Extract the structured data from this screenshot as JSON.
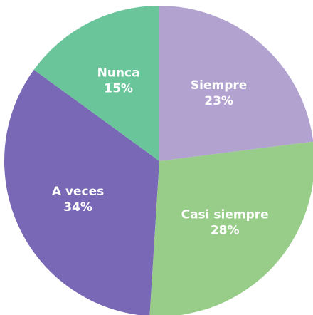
{
  "chart_data": {
    "type": "pie",
    "categories": [
      "Siempre",
      "Casi siempre",
      "A veces",
      "Nunca"
    ],
    "values": [
      23,
      28,
      34,
      15
    ],
    "value_labels": [
      "23%",
      "28%",
      "34%",
      "15%"
    ],
    "colors": [
      "#b2a2d0",
      "#98cd89",
      "#7968b5",
      "#6bc59a"
    ]
  }
}
